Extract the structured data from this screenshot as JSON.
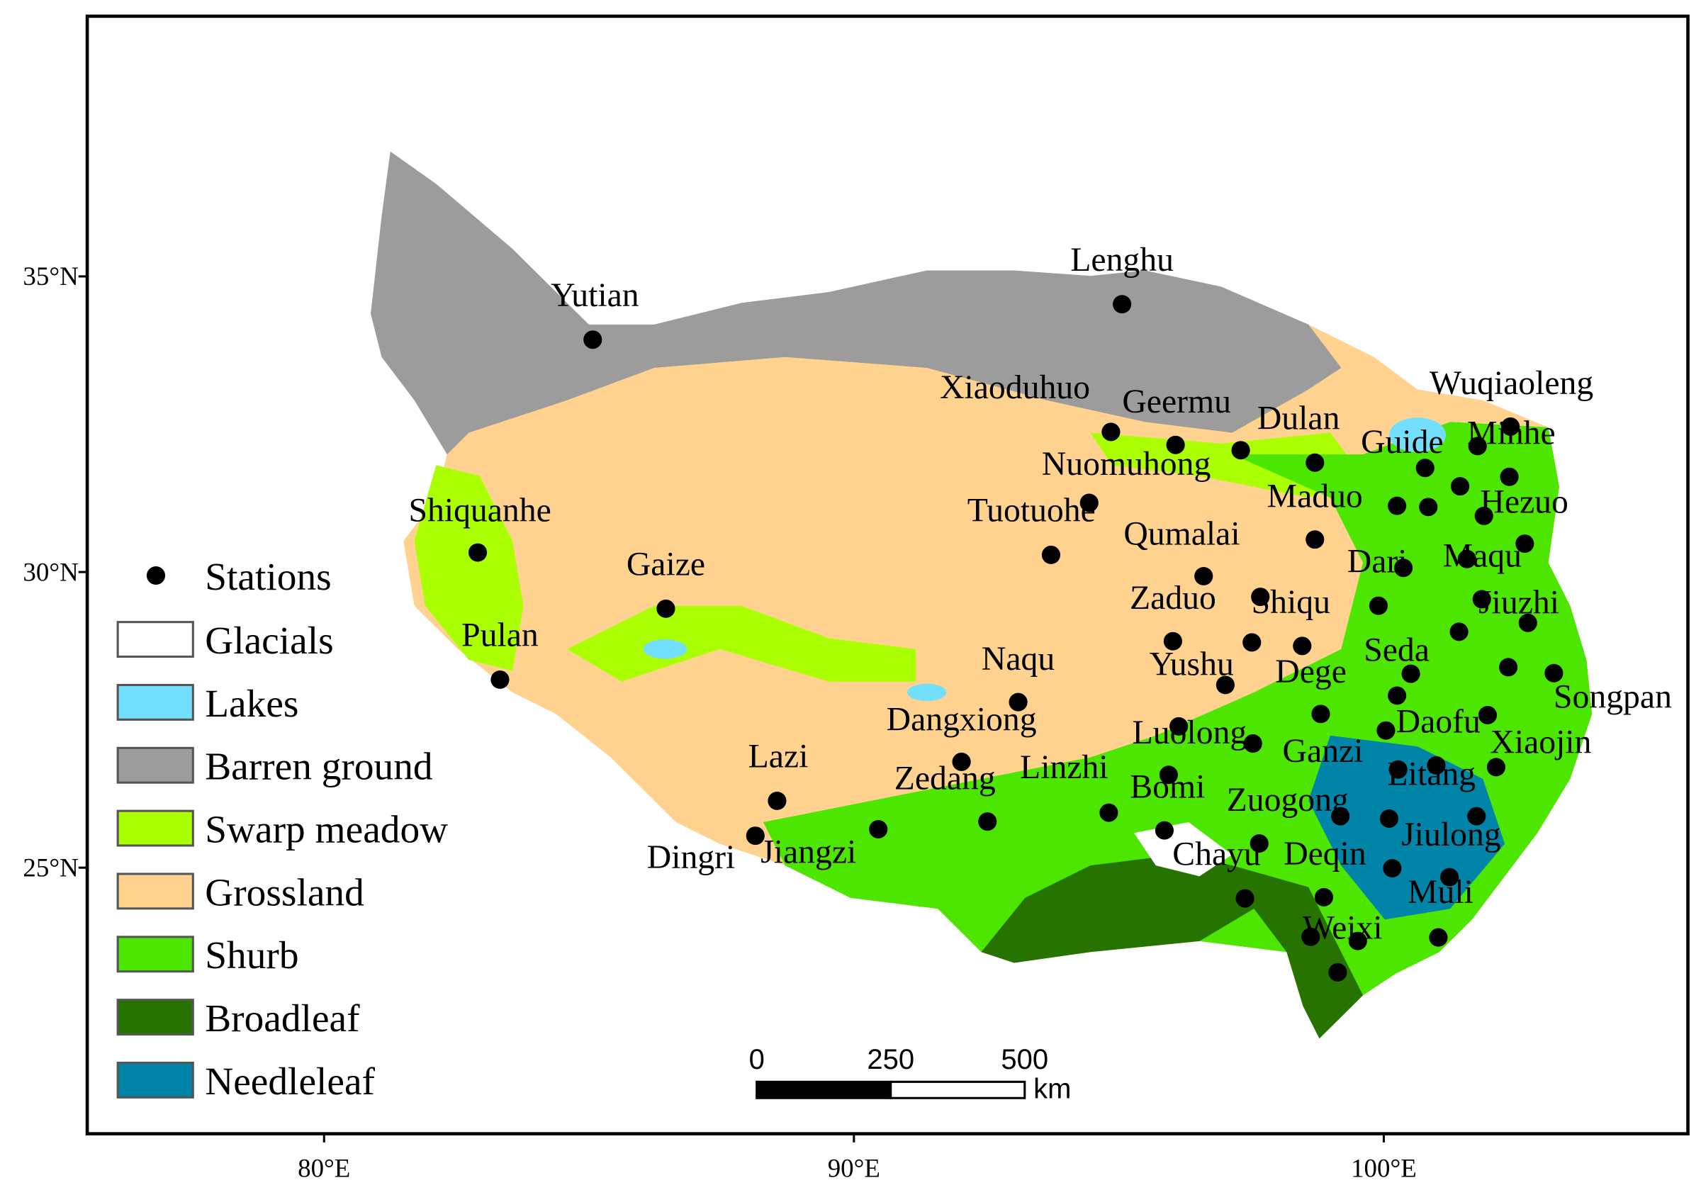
{
  "map": {
    "xlim": [
      75.53,
      105.74
    ],
    "ylim": [
      20.5,
      39.4
    ],
    "xticks": [
      {
        "value": 80,
        "label": "80°E"
      },
      {
        "value": 90,
        "label": "90°E"
      },
      {
        "value": 100,
        "label": "100°E"
      }
    ],
    "yticks": [
      {
        "value": 25,
        "label": "25°N"
      },
      {
        "value": 30,
        "label": "30°N"
      },
      {
        "value": 35,
        "label": "35°N"
      }
    ],
    "legend": {
      "stations": "Stations",
      "station_color": "#000000",
      "classes": [
        {
          "name": "Glacials",
          "color": "#ffffff"
        },
        {
          "name": "Lakes",
          "color": "#73dfff"
        },
        {
          "name": "Barren ground",
          "color": "#9c9c9c"
        },
        {
          "name": "Swarp meadow",
          "color": "#aaff00"
        },
        {
          "name": "Grossland",
          "color": "#ffd38f"
        },
        {
          "name": "Shurb",
          "color": "#4ce600"
        },
        {
          "name": "Broadleaf",
          "color": "#267300"
        },
        {
          "name": "Needleleaf",
          "color": "#0084a8"
        }
      ]
    },
    "scale_bar": {
      "ticks": [
        0,
        250,
        500
      ],
      "unit": "km"
    },
    "stations": [
      {
        "name": "Yutian",
        "lon": 85.07,
        "lat": 33.93
      },
      {
        "name": "Lenghu",
        "lon": 95.06,
        "lat": 34.53
      },
      {
        "name": "Xiaoduhuo",
        "lon": 94.85,
        "lat": 32.37
      },
      {
        "name": "Geermu",
        "lon": 96.07,
        "lat": 32.15
      },
      {
        "name": null,
        "lon": 97.3,
        "lat": 32.06
      },
      {
        "name": "Dulan",
        "lon": 98.7,
        "lat": 31.85
      },
      {
        "name": "Nuomuhong",
        "lon": 94.44,
        "lat": 31.17
      },
      {
        "name": "Wuqiaoleng",
        "lon": 102.39,
        "lat": 32.46
      },
      {
        "name": "Minhe",
        "lon": 101.77,
        "lat": 32.13
      },
      {
        "name": "Guide",
        "lon": 100.78,
        "lat": 31.76
      },
      {
        "name": null,
        "lon": 102.37,
        "lat": 31.61
      },
      {
        "name": null,
        "lon": 101.44,
        "lat": 31.45
      },
      {
        "name": "Maduo",
        "lon": 98.7,
        "lat": 30.55
      },
      {
        "name": null,
        "lon": 100.25,
        "lat": 31.12
      },
      {
        "name": null,
        "lon": 100.84,
        "lat": 31.1
      },
      {
        "name": "Hezuo",
        "lon": 101.89,
        "lat": 30.95
      },
      {
        "name": "Tuotuohe",
        "lon": 93.72,
        "lat": 30.29
      },
      {
        "name": "Qumalai",
        "lon": 96.6,
        "lat": 29.93
      },
      {
        "name": "Shiquanhe",
        "lon": 82.9,
        "lat": 30.33
      },
      {
        "name": "Gaize",
        "lon": 86.45,
        "lat": 29.38
      },
      {
        "name": "Pulan",
        "lon": 83.32,
        "lat": 28.18
      },
      {
        "name": "Dari",
        "lon": 100.37,
        "lat": 30.07
      },
      {
        "name": "Maqu",
        "lon": 101.57,
        "lat": 30.22
      },
      {
        "name": null,
        "lon": 102.66,
        "lat": 30.48
      },
      {
        "name": "Zaduo",
        "lon": 96.02,
        "lat": 28.83
      },
      {
        "name": "Shiqu",
        "lon": 97.67,
        "lat": 29.58
      },
      {
        "name": null,
        "lon": 99.9,
        "lat": 29.43
      },
      {
        "name": "Jiuzhi",
        "lon": 101.85,
        "lat": 29.54
      },
      {
        "name": null,
        "lon": 102.72,
        "lat": 29.14
      },
      {
        "name": null,
        "lon": 101.42,
        "lat": 28.99
      },
      {
        "name": null,
        "lon": 97.51,
        "lat": 28.81
      },
      {
        "name": null,
        "lon": 98.46,
        "lat": 28.75
      },
      {
        "name": "Yushu",
        "lon": 97.01,
        "lat": 28.09
      },
      {
        "name": "Dege",
        "lon": 98.81,
        "lat": 27.6
      },
      {
        "name": "Seda",
        "lon": 100.51,
        "lat": 28.28
      },
      {
        "name": null,
        "lon": 100.25,
        "lat": 27.91
      },
      {
        "name": null,
        "lon": 102.35,
        "lat": 28.39
      },
      {
        "name": "Songpan",
        "lon": 103.21,
        "lat": 28.29
      },
      {
        "name": "Naqu",
        "lon": 93.1,
        "lat": 27.8
      },
      {
        "name": "Dangxiong",
        "lon": 92.03,
        "lat": 26.79
      },
      {
        "name": "Daofu",
        "lon": 100.04,
        "lat": 27.32
      },
      {
        "name": null,
        "lon": 101.96,
        "lat": 27.58
      },
      {
        "name": "Luolong",
        "lon": 96.13,
        "lat": 27.39
      },
      {
        "name": null,
        "lon": 97.53,
        "lat": 27.1
      },
      {
        "name": "Ganzi",
        "lon": 100.27,
        "lat": 26.66
      },
      {
        "name": null,
        "lon": 100.99,
        "lat": 26.73
      },
      {
        "name": "Xiaojin",
        "lon": 102.12,
        "lat": 26.7
      },
      {
        "name": "Lazi",
        "lon": 88.55,
        "lat": 26.13
      },
      {
        "name": "Zedang",
        "lon": 92.52,
        "lat": 25.78
      },
      {
        "name": "Linzhi",
        "lon": 94.81,
        "lat": 25.93
      },
      {
        "name": "Bomi",
        "lon": 95.94,
        "lat": 26.57
      },
      {
        "name": "Litang",
        "lon": 100.1,
        "lat": 25.83
      },
      {
        "name": null,
        "lon": 101.75,
        "lat": 25.87
      },
      {
        "name": "Zuogong",
        "lon": 97.65,
        "lat": 25.41
      },
      {
        "name": null,
        "lon": 99.18,
        "lat": 25.87
      },
      {
        "name": "Dingri",
        "lon": 88.14,
        "lat": 25.54
      },
      {
        "name": "Jiangzi",
        "lon": 90.46,
        "lat": 25.65
      },
      {
        "name": "Jiulong",
        "lon": 100.16,
        "lat": 24.99
      },
      {
        "name": null,
        "lon": 101.24,
        "lat": 24.84
      },
      {
        "name": null,
        "lon": 95.86,
        "lat": 25.63
      },
      {
        "name": "Chayu",
        "lon": 97.38,
        "lat": 24.48
      },
      {
        "name": "Deqin",
        "lon": 98.87,
        "lat": 24.5
      },
      {
        "name": "Muli",
        "lon": 101.03,
        "lat": 23.82
      },
      {
        "name": "Weixi",
        "lon": 99.51,
        "lat": 23.76
      },
      {
        "name": null,
        "lon": 98.62,
        "lat": 23.83
      },
      {
        "name": null,
        "lon": 99.13,
        "lat": 23.23
      }
    ]
  }
}
